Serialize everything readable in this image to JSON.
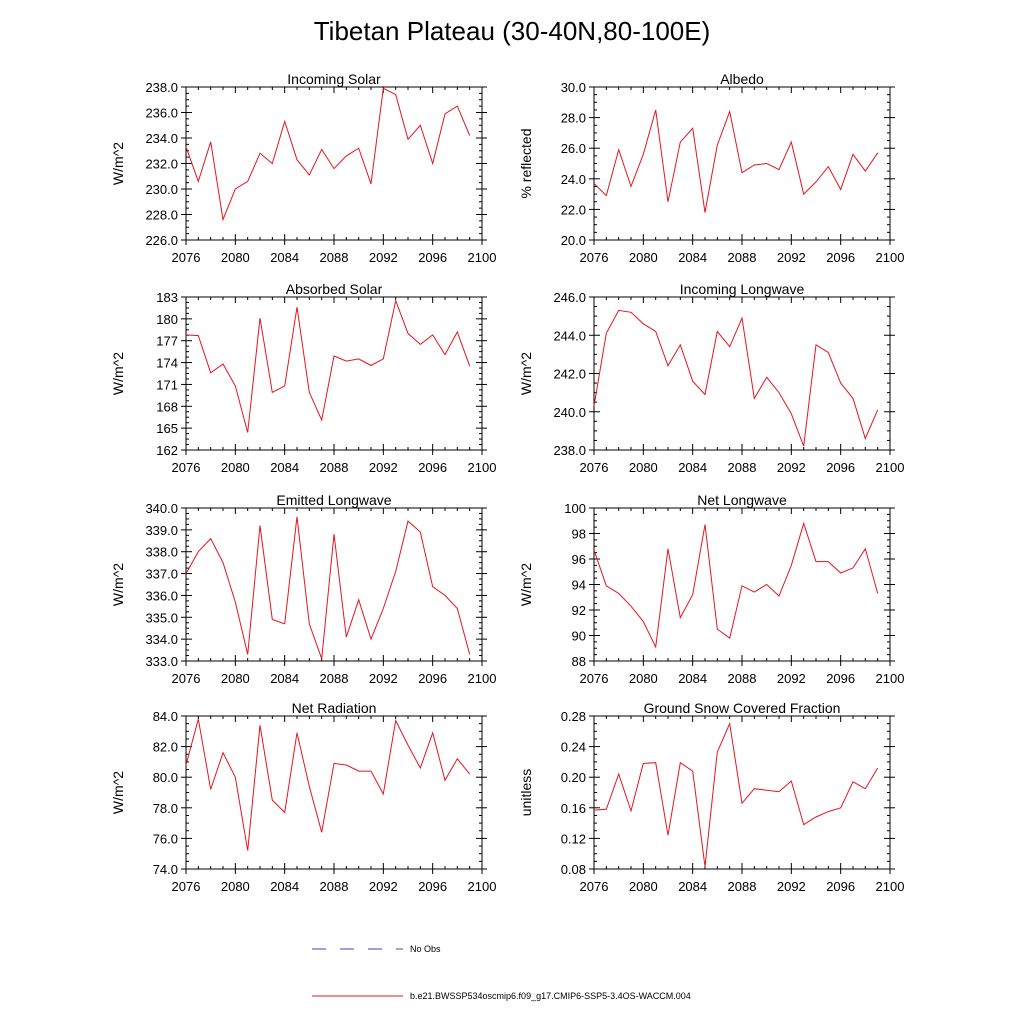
{
  "title": "Tibetan Plateau (30-40N,80-100E)",
  "colors": {
    "model": "#e8141e",
    "obs": "#3f3fc8",
    "axis": "#000000"
  },
  "legend": {
    "obs_label": "No Obs",
    "model_label": "b.e21.BWSSP534oscmip6.f09_g17.CMIP6-SSP5-3.4OS-WACCM.004"
  },
  "chart_data": [
    {
      "type": "line",
      "title": "Incoming Solar",
      "ylabel": "W/m^2",
      "xlim": [
        2076,
        2100
      ],
      "xticks": [
        2076,
        2080,
        2084,
        2088,
        2092,
        2096,
        2100
      ],
      "ylim": [
        226,
        238
      ],
      "yticks": [
        226,
        228,
        230,
        232,
        234,
        236,
        238
      ],
      "ydec": 1,
      "series": [
        {
          "name": "b.e21.BWSSP534oscmip6.f09_g17.CMIP6-SSP5-3.4OS-WACCM.004",
          "x": [
            2076,
            2077,
            2078,
            2079,
            2080,
            2081,
            2082,
            2083,
            2084,
            2085,
            2086,
            2087,
            2088,
            2089,
            2090,
            2091,
            2092,
            2093,
            2094,
            2095,
            2096,
            2097,
            2098,
            2099
          ],
          "values": [
            233.3,
            230.6,
            233.7,
            227.6,
            230.0,
            230.6,
            232.8,
            232.0,
            235.3,
            232.3,
            231.1,
            233.1,
            231.6,
            232.6,
            233.2,
            230.4,
            237.9,
            237.4,
            233.9,
            235.0,
            232.0,
            235.9,
            236.5,
            234.2
          ]
        }
      ]
    },
    {
      "type": "line",
      "title": "Albedo",
      "ylabel": "% reflected",
      "xlim": [
        2076,
        2100
      ],
      "xticks": [
        2076,
        2080,
        2084,
        2088,
        2092,
        2096,
        2100
      ],
      "ylim": [
        20,
        30
      ],
      "yticks": [
        20,
        22,
        24,
        26,
        28,
        30
      ],
      "ydec": 1,
      "series": [
        {
          "name": "b.e21.BWSSP534oscmip6.f09_g17.CMIP6-SSP5-3.4OS-WACCM.004",
          "x": [
            2076,
            2077,
            2078,
            2079,
            2080,
            2081,
            2082,
            2083,
            2084,
            2085,
            2086,
            2087,
            2088,
            2089,
            2090,
            2091,
            2092,
            2093,
            2094,
            2095,
            2096,
            2097,
            2098,
            2099
          ],
          "values": [
            23.7,
            22.9,
            25.9,
            23.5,
            25.6,
            28.5,
            22.5,
            26.4,
            27.3,
            21.8,
            26.2,
            28.4,
            24.4,
            24.9,
            25.0,
            24.6,
            26.4,
            23.0,
            23.8,
            24.8,
            23.3,
            25.6,
            24.5,
            25.7
          ]
        }
      ]
    },
    {
      "type": "line",
      "title": "Absorbed Solar",
      "ylabel": "W/m^2",
      "xlim": [
        2076,
        2100
      ],
      "xticks": [
        2076,
        2080,
        2084,
        2088,
        2092,
        2096,
        2100
      ],
      "ylim": [
        162,
        183
      ],
      "yticks": [
        162,
        165,
        168,
        171,
        174,
        177,
        180,
        183
      ],
      "ydec": 0,
      "series": [
        {
          "name": "b.e21.BWSSP534oscmip6.f09_g17.CMIP6-SSP5-3.4OS-WACCM.004",
          "x": [
            2076,
            2077,
            2078,
            2079,
            2080,
            2081,
            2082,
            2083,
            2084,
            2085,
            2086,
            2087,
            2088,
            2089,
            2090,
            2091,
            2092,
            2093,
            2094,
            2095,
            2096,
            2097,
            2098,
            2099
          ],
          "values": [
            177.8,
            177.7,
            172.6,
            173.8,
            170.8,
            164.4,
            180.1,
            169.9,
            170.8,
            181.6,
            169.9,
            166.1,
            174.9,
            174.2,
            174.5,
            173.6,
            174.5,
            182.5,
            178.0,
            176.5,
            177.8,
            175.1,
            178.2,
            173.5
          ]
        }
      ]
    },
    {
      "type": "line",
      "title": "Incoming Longwave",
      "ylabel": "W/m^2",
      "xlim": [
        2076,
        2100
      ],
      "xticks": [
        2076,
        2080,
        2084,
        2088,
        2092,
        2096,
        2100
      ],
      "ylim": [
        238,
        246
      ],
      "yticks": [
        238,
        240,
        242,
        244,
        246
      ],
      "ydec": 1,
      "series": [
        {
          "name": "b.e21.BWSSP534oscmip6.f09_g17.CMIP6-SSP5-3.4OS-WACCM.004",
          "x": [
            2076,
            2077,
            2078,
            2079,
            2080,
            2081,
            2082,
            2083,
            2084,
            2085,
            2086,
            2087,
            2088,
            2089,
            2090,
            2091,
            2092,
            2093,
            2094,
            2095,
            2096,
            2097,
            2098,
            2099
          ],
          "values": [
            240.3,
            244.1,
            245.3,
            245.2,
            244.6,
            244.2,
            242.4,
            243.5,
            241.6,
            240.9,
            244.2,
            243.4,
            244.9,
            240.7,
            241.8,
            241.0,
            239.9,
            238.2,
            243.5,
            243.1,
            241.5,
            240.7,
            238.6,
            240.1
          ]
        }
      ]
    },
    {
      "type": "line",
      "title": "Emitted Longwave",
      "ylabel": "W/m^2",
      "xlim": [
        2076,
        2100
      ],
      "xticks": [
        2076,
        2080,
        2084,
        2088,
        2092,
        2096,
        2100
      ],
      "ylim": [
        333,
        340
      ],
      "yticks": [
        333,
        334,
        335,
        336,
        337,
        338,
        339,
        340
      ],
      "ydec": 1,
      "series": [
        {
          "name": "b.e21.BWSSP534oscmip6.f09_g17.CMIP6-SSP5-3.4OS-WACCM.004",
          "x": [
            2076,
            2077,
            2078,
            2079,
            2080,
            2081,
            2082,
            2083,
            2084,
            2085,
            2086,
            2087,
            2088,
            2089,
            2090,
            2091,
            2092,
            2093,
            2094,
            2095,
            2096,
            2097,
            2098,
            2099
          ],
          "values": [
            337.0,
            338.0,
            338.6,
            337.5,
            335.7,
            333.3,
            339.2,
            334.9,
            334.7,
            339.6,
            334.7,
            333.1,
            338.8,
            334.1,
            335.8,
            334.0,
            335.4,
            337.1,
            339.4,
            338.9,
            336.4,
            336.0,
            335.4,
            333.3
          ]
        }
      ]
    },
    {
      "type": "line",
      "title": "Net Longwave",
      "ylabel": "W/m^2",
      "xlim": [
        2076,
        2100
      ],
      "xticks": [
        2076,
        2080,
        2084,
        2088,
        2092,
        2096,
        2100
      ],
      "ylim": [
        88,
        100
      ],
      "yticks": [
        88,
        90,
        92,
        94,
        96,
        98,
        100
      ],
      "ydec": 0,
      "series": [
        {
          "name": "b.e21.BWSSP534oscmip6.f09_g17.CMIP6-SSP5-3.4OS-WACCM.004",
          "x": [
            2076,
            2077,
            2078,
            2079,
            2080,
            2081,
            2082,
            2083,
            2084,
            2085,
            2086,
            2087,
            2088,
            2089,
            2090,
            2091,
            2092,
            2093,
            2094,
            2095,
            2096,
            2097,
            2098,
            2099
          ],
          "values": [
            96.7,
            93.9,
            93.3,
            92.3,
            91.1,
            89.1,
            96.8,
            91.4,
            93.2,
            98.7,
            90.5,
            89.8,
            93.9,
            93.4,
            94.0,
            93.1,
            95.5,
            98.8,
            95.8,
            95.8,
            94.9,
            95.3,
            96.8,
            93.3
          ]
        }
      ]
    },
    {
      "type": "line",
      "title": "Net Radiation",
      "ylabel": "W/m^2",
      "xlim": [
        2076,
        2100
      ],
      "xticks": [
        2076,
        2080,
        2084,
        2088,
        2092,
        2096,
        2100
      ],
      "ylim": [
        74,
        84
      ],
      "yticks": [
        74,
        76,
        78,
        80,
        82,
        84
      ],
      "ydec": 1,
      "series": [
        {
          "name": "b.e21.BWSSP534oscmip6.f09_g17.CMIP6-SSP5-3.4OS-WACCM.004",
          "x": [
            2076,
            2077,
            2078,
            2079,
            2080,
            2081,
            2082,
            2083,
            2084,
            2085,
            2086,
            2087,
            2088,
            2089,
            2090,
            2091,
            2092,
            2093,
            2094,
            2095,
            2096,
            2097,
            2098,
            2099
          ],
          "values": [
            80.8,
            83.8,
            79.2,
            81.6,
            80.0,
            75.2,
            83.4,
            78.5,
            77.7,
            82.9,
            79.4,
            76.4,
            80.9,
            80.8,
            80.4,
            80.4,
            78.9,
            83.7,
            82.1,
            80.6,
            82.9,
            79.8,
            81.2,
            80.2
          ]
        }
      ]
    },
    {
      "type": "line",
      "title": "Ground Snow Covered Fraction",
      "ylabel": "unitless",
      "xlim": [
        2076,
        2100
      ],
      "xticks": [
        2076,
        2080,
        2084,
        2088,
        2092,
        2096,
        2100
      ],
      "ylim": [
        0.08,
        0.28
      ],
      "yticks": [
        0.08,
        0.12,
        0.16,
        0.2,
        0.24,
        0.28
      ],
      "ydec": 2,
      "series": [
        {
          "name": "b.e21.BWSSP534oscmip6.f09_g17.CMIP6-SSP5-3.4OS-WACCM.004",
          "x": [
            2076,
            2077,
            2078,
            2079,
            2080,
            2081,
            2082,
            2083,
            2084,
            2085,
            2086,
            2087,
            2088,
            2089,
            2090,
            2091,
            2092,
            2093,
            2094,
            2095,
            2096,
            2097,
            2098,
            2099
          ],
          "values": [
            0.157,
            0.158,
            0.204,
            0.156,
            0.218,
            0.219,
            0.124,
            0.219,
            0.208,
            0.083,
            0.233,
            0.27,
            0.166,
            0.185,
            0.183,
            0.181,
            0.195,
            0.138,
            0.148,
            0.155,
            0.16,
            0.194,
            0.185,
            0.212
          ]
        }
      ]
    }
  ]
}
